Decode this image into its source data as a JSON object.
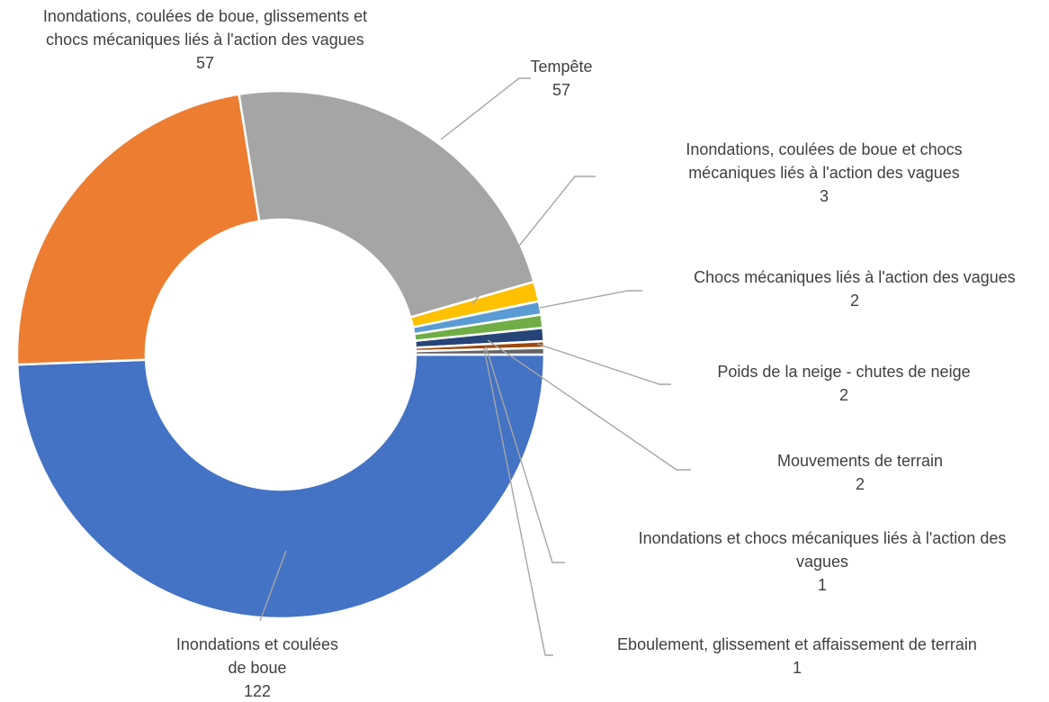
{
  "chart_data": {
    "type": "pie",
    "variant": "donut",
    "title": "",
    "legend": "none",
    "slices": [
      {
        "label": "Inondations et coulées de boue",
        "value": 122,
        "color": "#4472c4"
      },
      {
        "label": "Inondations, coulées de boue, glissements et chocs mécaniques liés à l'action des vagues",
        "value": 57,
        "color": "#ed7d31"
      },
      {
        "label": "Tempête",
        "value": 57,
        "color": "#a5a5a5"
      },
      {
        "label": "Inondations, coulées de boue et chocs mécaniques liés à l'action des vagues",
        "value": 3,
        "color": "#ffc000"
      },
      {
        "label": "Chocs mécaniques liés à l'action des vagues",
        "value": 2,
        "color": "#5b9bd5"
      },
      {
        "label": "Poids de la neige - chutes de neige",
        "value": 2,
        "color": "#70ad47"
      },
      {
        "label": "Mouvements de terrain",
        "value": 2,
        "color": "#264478"
      },
      {
        "label": "Inondations et chocs mécaniques liés à l'action des vagues",
        "value": 1,
        "color": "#9e480e"
      },
      {
        "label": "Eboulement, glissement et affaissement de terrain",
        "value": 1,
        "color": "#636363"
      }
    ]
  }
}
